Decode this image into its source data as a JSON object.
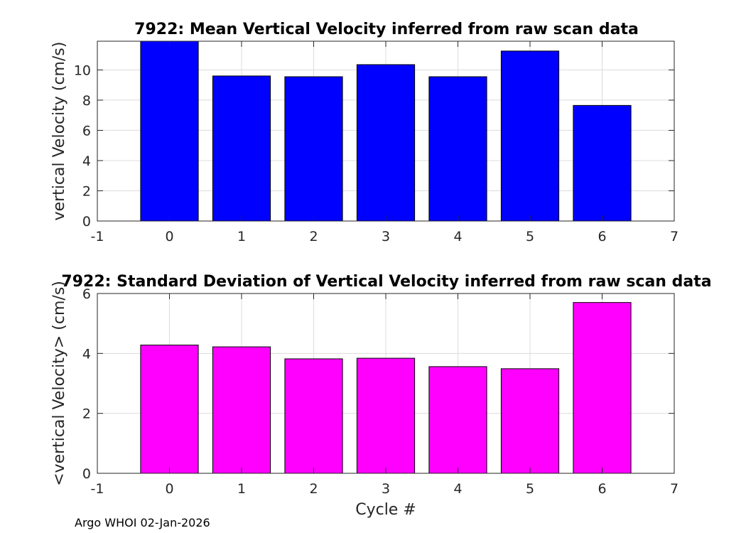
{
  "chart_data": [
    {
      "type": "bar",
      "title": "7922: Mean Vertical Velocity inferred from raw scan data",
      "xlabel": "",
      "ylabel": "vertical Velocity (cm/s)",
      "x": [
        0,
        1,
        2,
        3,
        4,
        5,
        6
      ],
      "values": [
        11.9,
        9.6,
        9.55,
        10.35,
        9.55,
        11.25,
        7.65
      ],
      "xlim": [
        -1,
        7
      ],
      "ylim": [
        0,
        11.9
      ],
      "xticks": [
        -1,
        0,
        1,
        2,
        3,
        4,
        5,
        6,
        7
      ],
      "yticks": [
        0,
        2,
        4,
        6,
        8,
        10
      ],
      "grid": true,
      "color": "#0000ff"
    },
    {
      "type": "bar",
      "title": "7922: Standard Deviation of Vertical Velocity inferred from raw scan data",
      "xlabel": "Cycle #",
      "ylabel": "<vertical Velocity> (cm/s)",
      "x": [
        0,
        1,
        2,
        3,
        4,
        5,
        6
      ],
      "values": [
        4.28,
        4.22,
        3.82,
        3.84,
        3.56,
        3.49,
        5.7
      ],
      "xlim": [
        -1,
        7
      ],
      "ylim": [
        0,
        6
      ],
      "xticks": [
        -1,
        0,
        1,
        2,
        3,
        4,
        5,
        6,
        7
      ],
      "yticks": [
        0,
        2,
        4,
        6
      ],
      "grid": true,
      "color": "#ff00ff"
    }
  ],
  "footer": {
    "text": "Argo WHOI 02-Jan-2026"
  }
}
